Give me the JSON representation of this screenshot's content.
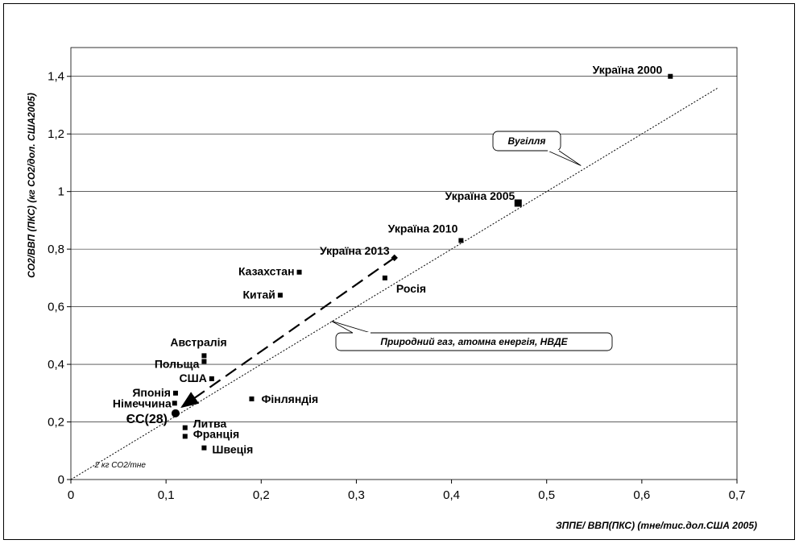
{
  "chart_data": {
    "type": "scatter",
    "xlabel": "ЗППЕ/ ВВП(ПКС) (тне/тис.дол.США 2005)",
    "ylabel": "СО2/ВВП (ПКС) (кг СО2/дол. США2005)",
    "xlim": [
      0,
      0.7
    ],
    "ylim": [
      0,
      1.5
    ],
    "x_ticks": [
      "0",
      "0,1",
      "0,2",
      "0,3",
      "0,4",
      "0,5",
      "0,6",
      "0,7"
    ],
    "y_ticks": [
      "0",
      "0,2",
      "0,4",
      "0,6",
      "0,8",
      "1",
      "1,2",
      "1,4"
    ],
    "grid": true,
    "points": [
      {
        "label": "Україна 2000",
        "x": 0.63,
        "y": 1.4
      },
      {
        "label": "Україна 2005",
        "x": 0.47,
        "y": 0.96
      },
      {
        "label": "Україна 2010",
        "x": 0.41,
        "y": 0.83
      },
      {
        "label": "Україна 2013",
        "x": 0.34,
        "y": 0.77
      },
      {
        "label": "Росія",
        "x": 0.33,
        "y": 0.7
      },
      {
        "label": "Казахстан",
        "x": 0.24,
        "y": 0.72
      },
      {
        "label": "Китай",
        "x": 0.22,
        "y": 0.64
      },
      {
        "label": "Австралія",
        "x": 0.14,
        "y": 0.43
      },
      {
        "label": "Польща",
        "x": 0.14,
        "y": 0.41
      },
      {
        "label": "США",
        "x": 0.148,
        "y": 0.35
      },
      {
        "label": "Японія",
        "x": 0.11,
        "y": 0.3
      },
      {
        "label": "Німеччина",
        "x": 0.109,
        "y": 0.265
      },
      {
        "label": "ЄС(28)",
        "x": 0.11,
        "y": 0.23
      },
      {
        "label": "Фінляндія",
        "x": 0.19,
        "y": 0.28
      },
      {
        "label": "Литва",
        "x": 0.12,
        "y": 0.18
      },
      {
        "label": "Франція",
        "x": 0.12,
        "y": 0.15
      },
      {
        "label": "Швеція",
        "x": 0.14,
        "y": 0.11
      }
    ],
    "reference_line": {
      "label": "2 кг СО2/тне",
      "from": [
        0,
        0
      ],
      "to": [
        0.68,
        1.36
      ]
    },
    "trend_arrow": {
      "from": [
        0.34,
        0.77
      ],
      "to": [
        0.11,
        0.23
      ]
    },
    "annotations": [
      {
        "text": "Вугілля"
      },
      {
        "text": "Природний газ, атомна енергія, НВДЕ"
      }
    ]
  }
}
